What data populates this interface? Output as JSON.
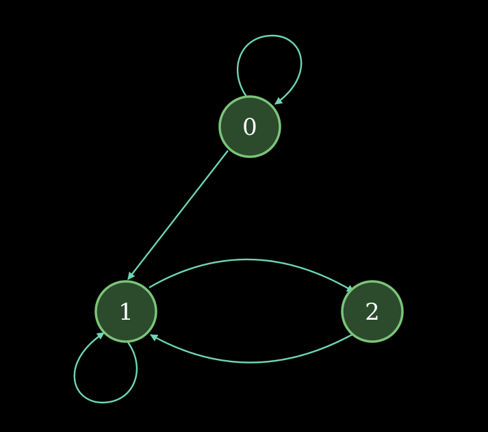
{
  "colors": {
    "background": "#000000",
    "edge": "#6fd6b4",
    "node_fill": "#2c4a2c",
    "node_stroke": "#7cc47a",
    "node_text": "#ffffff"
  },
  "nodes": [
    {
      "id": "0",
      "label": "0"
    },
    {
      "id": "1",
      "label": "1"
    },
    {
      "id": "2",
      "label": "2"
    }
  ],
  "edges": [
    {
      "from": "0",
      "to": "0"
    },
    {
      "from": "0",
      "to": "1"
    },
    {
      "from": "1",
      "to": "2"
    },
    {
      "from": "2",
      "to": "1"
    },
    {
      "from": "1",
      "to": "1"
    }
  ]
}
